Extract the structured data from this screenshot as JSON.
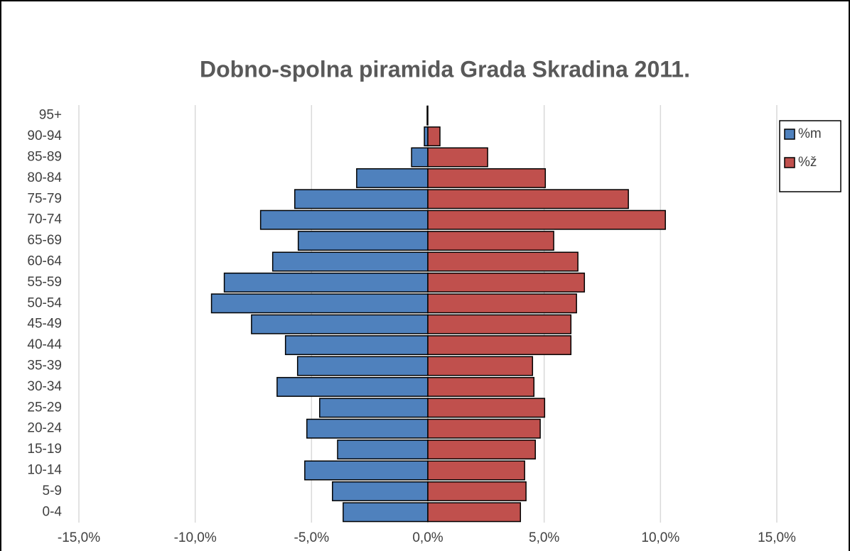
{
  "chart_data": {
    "type": "bar",
    "orientation": "horizontal",
    "title": "Dobno-spolna piramida Grada Skradina 2011.",
    "categories": [
      "0-4",
      "5-9",
      "10-14",
      "15-19",
      "20-24",
      "25-29",
      "30-34",
      "35-39",
      "40-44",
      "45-49",
      "50-54",
      "55-59",
      "60-64",
      "65-69",
      "70-74",
      "75-79",
      "80-84",
      "85-89",
      "90-94",
      "95+"
    ],
    "series": [
      {
        "name": "%m",
        "color": "#4f81bd",
        "values": [
          -3.64,
          -4.1,
          -5.29,
          -3.88,
          -5.2,
          -4.65,
          -6.48,
          -5.6,
          -6.12,
          -7.58,
          -9.3,
          -8.75,
          -6.67,
          -5.57,
          -7.19,
          -5.72,
          -3.06,
          -0.7,
          -0.15,
          -0.03
        ]
      },
      {
        "name": "%ž",
        "color": "#c0504d",
        "values": [
          3.98,
          4.22,
          4.16,
          4.62,
          4.83,
          5.02,
          4.56,
          4.5,
          6.15,
          6.15,
          6.39,
          6.73,
          6.45,
          5.41,
          10.21,
          8.62,
          5.05,
          2.57,
          0.52,
          0
        ]
      }
    ],
    "xlim": [
      -15,
      15
    ],
    "xticks": [
      {
        "value": -15,
        "label": "-15,0%"
      },
      {
        "value": -10,
        "label": "-10,0%"
      },
      {
        "value": -5,
        "label": "-5,0%"
      },
      {
        "value": 0,
        "label": "0,0%"
      },
      {
        "value": 5,
        "label": "5,0%"
      },
      {
        "value": 10,
        "label": "10,0%"
      },
      {
        "value": 15,
        "label": "15,0%"
      }
    ],
    "grid": true,
    "legend": "right"
  }
}
